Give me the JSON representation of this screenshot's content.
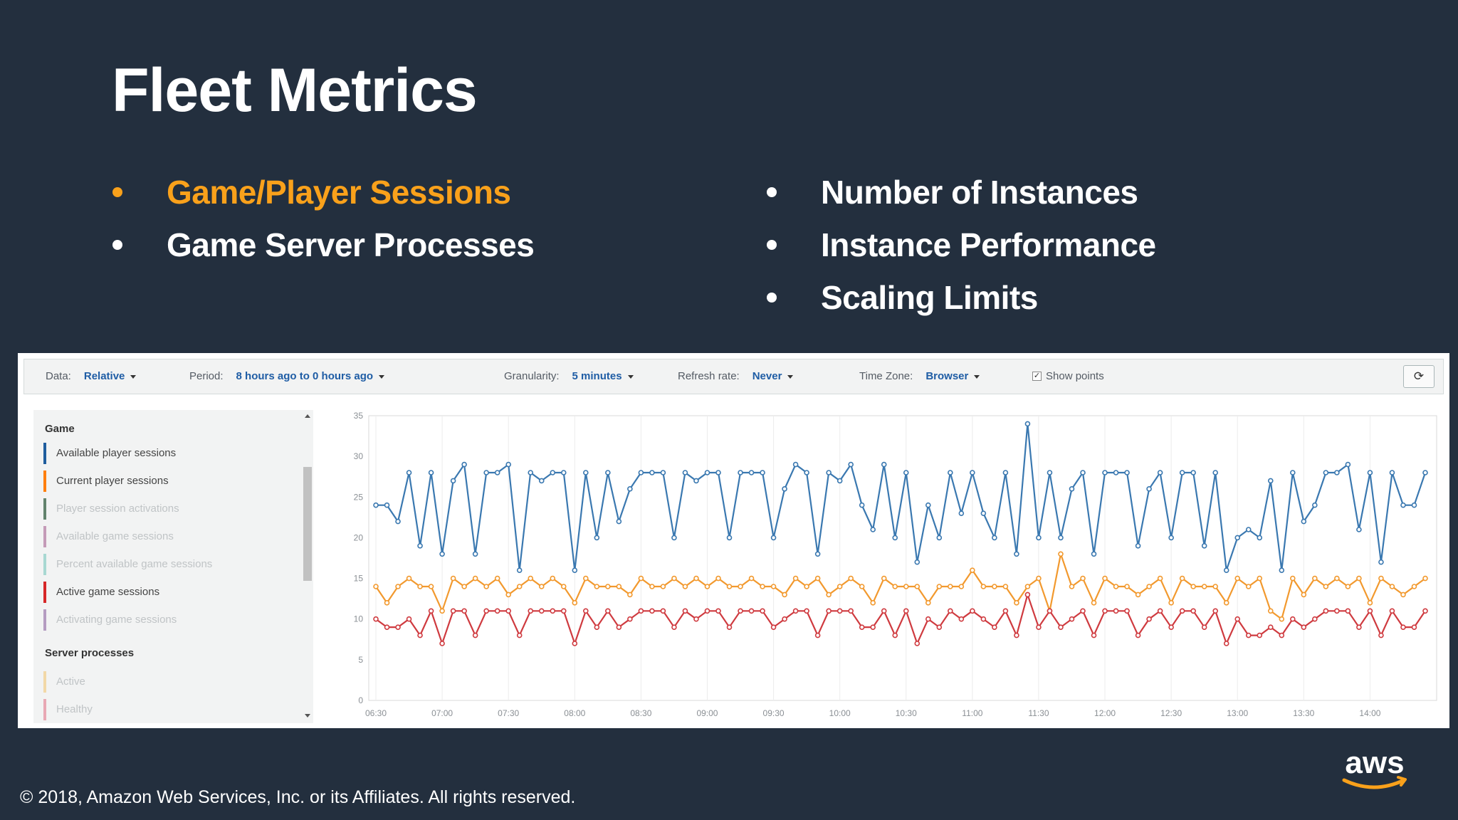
{
  "slide": {
    "title": "Fleet Metrics",
    "bullets_left": [
      {
        "text": "Game/Player Sessions",
        "highlight": true
      },
      {
        "text": "Game Server Processes",
        "highlight": false
      }
    ],
    "bullets_right": [
      {
        "text": "Number of Instances",
        "highlight": false
      },
      {
        "text": "Instance Performance",
        "highlight": false
      },
      {
        "text": "Scaling Limits",
        "highlight": false
      }
    ],
    "highlight_color": "#f9a11b",
    "background_color": "#232f3e"
  },
  "toolbar": {
    "data_label": "Data:",
    "data_value": "Relative",
    "period_label": "Period:",
    "period_value": "8 hours ago to 0 hours ago",
    "granularity_label": "Granularity:",
    "granularity_value": "5 minutes",
    "refresh_label": "Refresh rate:",
    "refresh_value": "Never",
    "timezone_label": "Time Zone:",
    "timezone_value": "Browser",
    "show_points_label": "Show points",
    "show_points_checked": true,
    "refresh_icon": "refresh-icon"
  },
  "sidebar": {
    "game_heading": "Game",
    "game_metrics": [
      {
        "label": "Available player sessions",
        "color": "#1f5d9e",
        "active": true
      },
      {
        "label": "Current player sessions",
        "color": "#ff7f0e",
        "active": true
      },
      {
        "label": "Player session activations",
        "color": "#62836d",
        "active": false
      },
      {
        "label": "Available game sessions",
        "color": "#c49bb8",
        "active": false
      },
      {
        "label": "Percent available game sessions",
        "color": "#a8d8d2",
        "active": false
      },
      {
        "label": "Active game sessions",
        "color": "#d62728",
        "active": true
      },
      {
        "label": "Activating game sessions",
        "color": "#b59cc1",
        "active": false
      }
    ],
    "server_heading": "Server processes",
    "server_metrics": [
      {
        "label": "Active",
        "color": "#f2d8a7",
        "active": false
      },
      {
        "label": "Healthy",
        "color": "#e8a8b4",
        "active": false
      }
    ]
  },
  "chart_data": {
    "type": "line",
    "x_tick_labels": [
      "06:30",
      "07:00",
      "07:30",
      "08:00",
      "08:30",
      "09:00",
      "09:30",
      "10:00",
      "10:30",
      "11:00",
      "11:30",
      "12:00",
      "12:30",
      "13:00",
      "13:30",
      "14:00"
    ],
    "x_start": "06:30",
    "x_interval_minutes": 5,
    "ylim": [
      0,
      35
    ],
    "y_ticks": [
      0,
      5,
      10,
      15,
      20,
      25,
      30,
      35
    ],
    "grid": "vertical",
    "series": [
      {
        "name": "Available player sessions",
        "color": "#3a78b0",
        "values": [
          24,
          24,
          22,
          28,
          19,
          28,
          18,
          27,
          29,
          18,
          28,
          28,
          29,
          16,
          28,
          27,
          28,
          28,
          16,
          28,
          20,
          28,
          22,
          26,
          28,
          28,
          28,
          20,
          28,
          27,
          28,
          28,
          20,
          28,
          28,
          28,
          20,
          26,
          29,
          28,
          18,
          28,
          27,
          29,
          24,
          21,
          29,
          20,
          28,
          17,
          24,
          20,
          28,
          23,
          28,
          23,
          20,
          28,
          18,
          34,
          20,
          28,
          20,
          26,
          28,
          18,
          28,
          28,
          28,
          19,
          26,
          28,
          20,
          28,
          28,
          19,
          28,
          16,
          20,
          21,
          20,
          27,
          16,
          28,
          22,
          24,
          28,
          28,
          29,
          21,
          28,
          17,
          28,
          24,
          24,
          28
        ]
      },
      {
        "name": "Current player sessions",
        "color": "#f2992e",
        "values": [
          14,
          12,
          14,
          15,
          14,
          14,
          11,
          15,
          14,
          15,
          14,
          15,
          13,
          14,
          15,
          14,
          15,
          14,
          12,
          15,
          14,
          14,
          14,
          13,
          15,
          14,
          14,
          15,
          14,
          15,
          14,
          15,
          14,
          14,
          15,
          14,
          14,
          13,
          15,
          14,
          15,
          13,
          14,
          15,
          14,
          12,
          15,
          14,
          14,
          14,
          12,
          14,
          14,
          14,
          16,
          14,
          14,
          14,
          12,
          14,
          15,
          11,
          18,
          14,
          15,
          12,
          15,
          14,
          14,
          13,
          14,
          15,
          12,
          15,
          14,
          14,
          14,
          12,
          15,
          14,
          15,
          11,
          10,
          15,
          13,
          15,
          14,
          15,
          14,
          15,
          12,
          15,
          14,
          13,
          14,
          15
        ]
      },
      {
        "name": "Active game sessions",
        "color": "#cf3a3f",
        "values": [
          10,
          9,
          9,
          10,
          8,
          11,
          7,
          11,
          11,
          8,
          11,
          11,
          11,
          8,
          11,
          11,
          11,
          11,
          7,
          11,
          9,
          11,
          9,
          10,
          11,
          11,
          11,
          9,
          11,
          10,
          11,
          11,
          9,
          11,
          11,
          11,
          9,
          10,
          11,
          11,
          8,
          11,
          11,
          11,
          9,
          9,
          11,
          8,
          11,
          7,
          10,
          9,
          11,
          10,
          11,
          10,
          9,
          11,
          8,
          13,
          9,
          11,
          9,
          10,
          11,
          8,
          11,
          11,
          11,
          8,
          10,
          11,
          9,
          11,
          11,
          9,
          11,
          7,
          10,
          8,
          8,
          9,
          8,
          10,
          9,
          10,
          11,
          11,
          11,
          9,
          11,
          8,
          11,
          9,
          9,
          11
        ]
      }
    ]
  },
  "footer": {
    "copyright_symbol": "©",
    "text": "2018, Amazon Web Services, Inc. or its Affiliates. All rights reserved.",
    "logo_text": "aws"
  }
}
